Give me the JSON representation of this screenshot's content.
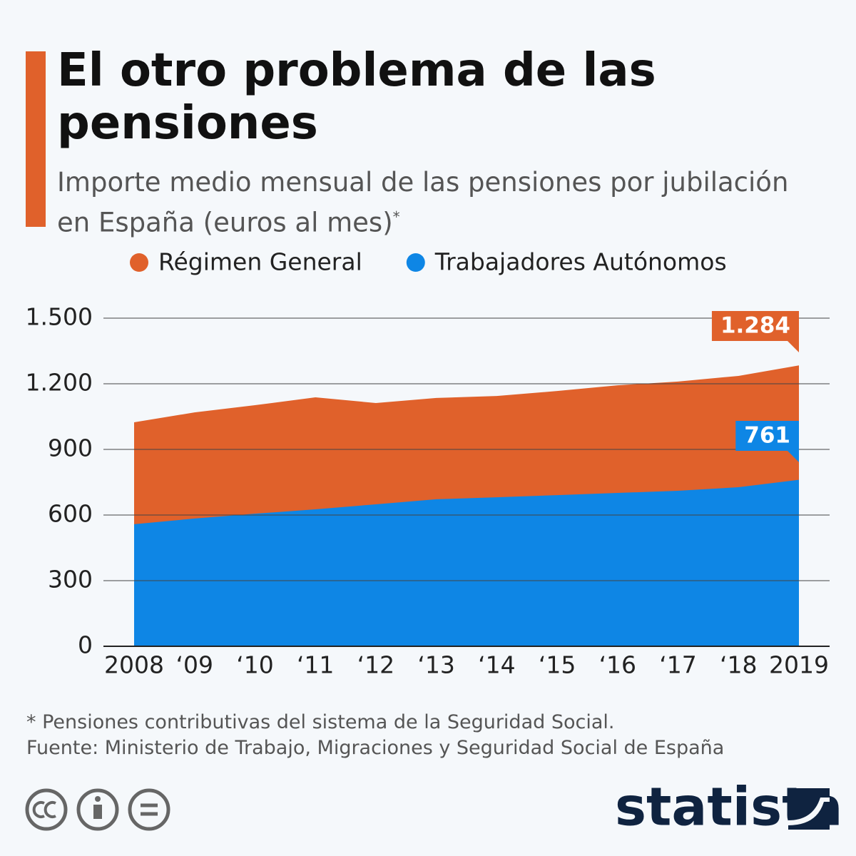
{
  "title": "El otro problema de las pensiones",
  "subtitle": "Importe medio mensual de las pensiones por jubilación en España (euros al mes)",
  "subtitle_mark": "*",
  "chart_data": {
    "type": "area",
    "categories": [
      "2008",
      "‘09",
      "‘10",
      "‘11",
      "‘12",
      "‘13",
      "‘14",
      "‘15",
      "‘16",
      "‘17",
      "‘18",
      "2019"
    ],
    "series": [
      {
        "name": "Régimen General",
        "color": "#e0612b",
        "values": [
          1024,
          1069,
          1102,
          1138,
          1112,
          1135,
          1144,
          1167,
          1193,
          1210,
          1236,
          1284
        ],
        "value_labels": [
          null,
          null,
          null,
          null,
          null,
          null,
          null,
          null,
          null,
          null,
          null,
          "1.284"
        ]
      },
      {
        "name": "Trabajadores Autónomos",
        "color": "#0e86e5",
        "values": [
          558,
          584,
          606,
          626,
          649,
          672,
          681,
          691,
          701,
          711,
          727,
          761
        ],
        "value_labels": [
          null,
          null,
          null,
          null,
          null,
          null,
          null,
          null,
          null,
          null,
          null,
          "761"
        ]
      }
    ],
    "ylim": [
      0,
      1500
    ],
    "yticks": [
      0,
      300,
      600,
      900,
      {
        "value": 1200,
        "label": "1.200"
      },
      {
        "value": 1500,
        "label": "1.500"
      }
    ],
    "grid": true,
    "legend": "top"
  },
  "notes": [
    "* Pensiones contributivas del sistema de la Seguridad Social.",
    "Fuente: Ministerio de Trabajo, Migraciones y Seguridad Social de España"
  ],
  "logo": "statista"
}
